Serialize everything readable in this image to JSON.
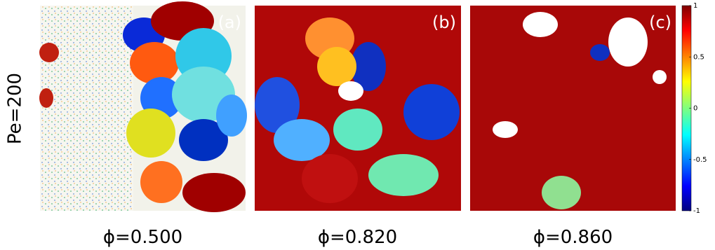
{
  "row_label": "Pe=200",
  "panels": [
    {
      "label": "(a)",
      "caption": "ϕ=0.500"
    },
    {
      "label": "(b)",
      "caption": "ϕ=0.820"
    },
    {
      "label": "(c)",
      "caption": "ϕ=0.860"
    }
  ],
  "colorbar": {
    "ticks": [
      1,
      0.5,
      0,
      -0.5,
      -1
    ]
  }
}
